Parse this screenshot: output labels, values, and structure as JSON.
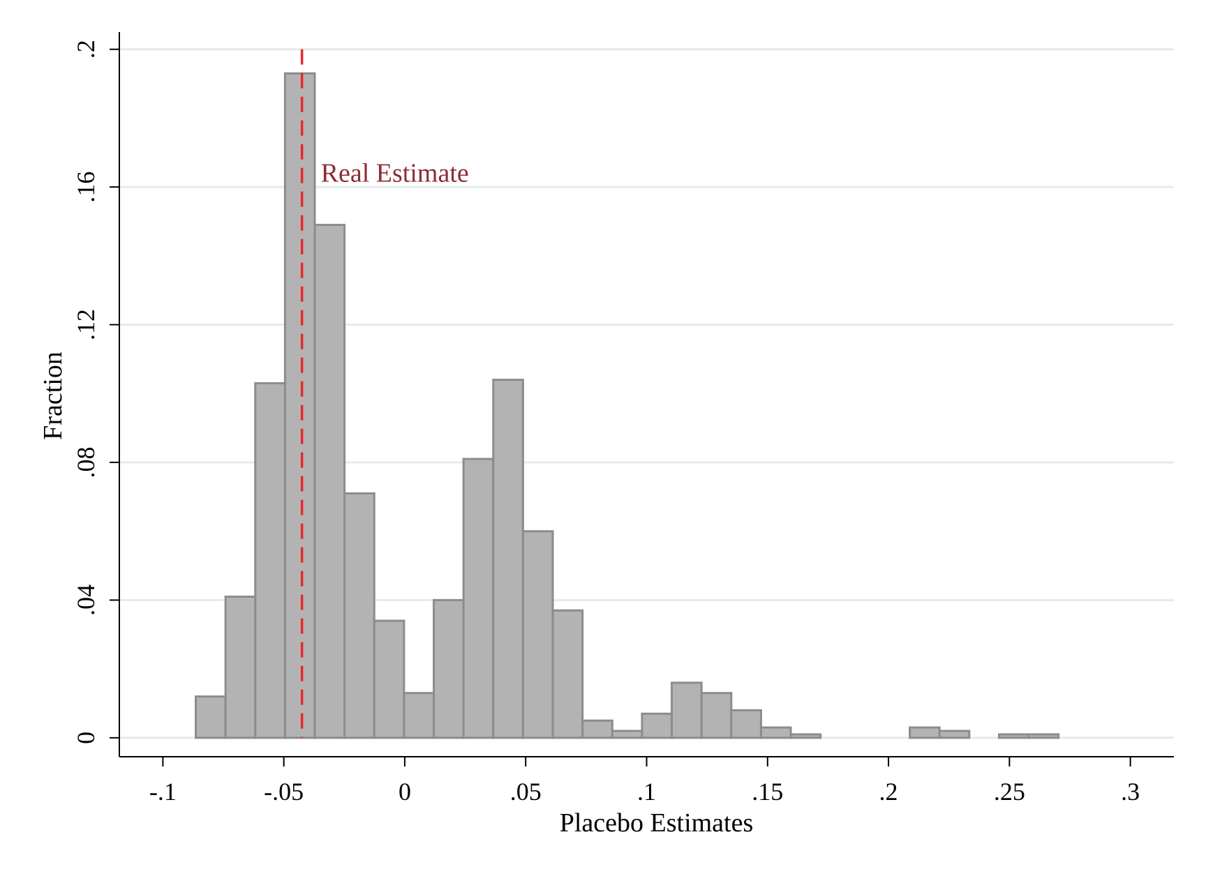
{
  "chart_data": {
    "type": "bar",
    "subtype": "histogram",
    "xlabel": "Placebo Estimates",
    "ylabel": "Fraction",
    "xlim": [
      -0.118,
      0.318
    ],
    "ylim": [
      -0.0055,
      0.205
    ],
    "x_ticks": [
      {
        "value": -0.1,
        "label": "-.1"
      },
      {
        "value": -0.05,
        "label": "-.05"
      },
      {
        "value": 0,
        "label": "0"
      },
      {
        "value": 0.05,
        "label": ".05"
      },
      {
        "value": 0.1,
        "label": ".1"
      },
      {
        "value": 0.15,
        "label": ".15"
      },
      {
        "value": 0.2,
        "label": ".2"
      },
      {
        "value": 0.25,
        "label": ".25"
      },
      {
        "value": 0.3,
        "label": ".3"
      }
    ],
    "y_ticks": [
      {
        "value": 0,
        "label": "0"
      },
      {
        "value": 0.04,
        "label": ".04"
      },
      {
        "value": 0.08,
        "label": ".08"
      },
      {
        "value": 0.12,
        "label": ".12"
      },
      {
        "value": 0.16,
        "label": ".16"
      },
      {
        "value": 0.2,
        "label": ".2"
      }
    ],
    "grid": true,
    "bin_width": 0.0123,
    "bins": [
      {
        "x0": -0.0864,
        "x1": -0.0741,
        "value": 0.012
      },
      {
        "x0": -0.0741,
        "x1": -0.0618,
        "value": 0.041
      },
      {
        "x0": -0.0618,
        "x1": -0.0495,
        "value": 0.103
      },
      {
        "x0": -0.0495,
        "x1": -0.0372,
        "value": 0.193
      },
      {
        "x0": -0.0372,
        "x1": -0.0249,
        "value": 0.149
      },
      {
        "x0": -0.0249,
        "x1": -0.0126,
        "value": 0.071
      },
      {
        "x0": -0.0126,
        "x1": -0.0003,
        "value": 0.034
      },
      {
        "x0": -0.0003,
        "x1": 0.012,
        "value": 0.013
      },
      {
        "x0": 0.012,
        "x1": 0.0243,
        "value": 0.04
      },
      {
        "x0": 0.0243,
        "x1": 0.0366,
        "value": 0.081
      },
      {
        "x0": 0.0366,
        "x1": 0.0489,
        "value": 0.104
      },
      {
        "x0": 0.0489,
        "x1": 0.0612,
        "value": 0.06
      },
      {
        "x0": 0.0612,
        "x1": 0.0735,
        "value": 0.037
      },
      {
        "x0": 0.0735,
        "x1": 0.0858,
        "value": 0.005
      },
      {
        "x0": 0.0858,
        "x1": 0.0981,
        "value": 0.002
      },
      {
        "x0": 0.0981,
        "x1": 0.1104,
        "value": 0.007
      },
      {
        "x0": 0.1104,
        "x1": 0.1227,
        "value": 0.016
      },
      {
        "x0": 0.1227,
        "x1": 0.135,
        "value": 0.013
      },
      {
        "x0": 0.135,
        "x1": 0.1473,
        "value": 0.008
      },
      {
        "x0": 0.1473,
        "x1": 0.1596,
        "value": 0.003
      },
      {
        "x0": 0.1596,
        "x1": 0.1719,
        "value": 0.001
      },
      {
        "x0": 0.2088,
        "x1": 0.2211,
        "value": 0.003
      },
      {
        "x0": 0.2211,
        "x1": 0.2334,
        "value": 0.002
      },
      {
        "x0": 0.2457,
        "x1": 0.258,
        "value": 0.001
      },
      {
        "x0": 0.258,
        "x1": 0.2703,
        "value": 0.001
      }
    ],
    "reference_line": {
      "x": -0.0425,
      "label": "Real Estimate",
      "style": "dashed",
      "color": "#e8282b"
    },
    "colors": {
      "bar_fill": "#b3b3b3",
      "bar_stroke": "#8c8c8c",
      "grid": "#e3ecec",
      "axis": "#000000",
      "annotation_text": "#8c2d33"
    }
  }
}
